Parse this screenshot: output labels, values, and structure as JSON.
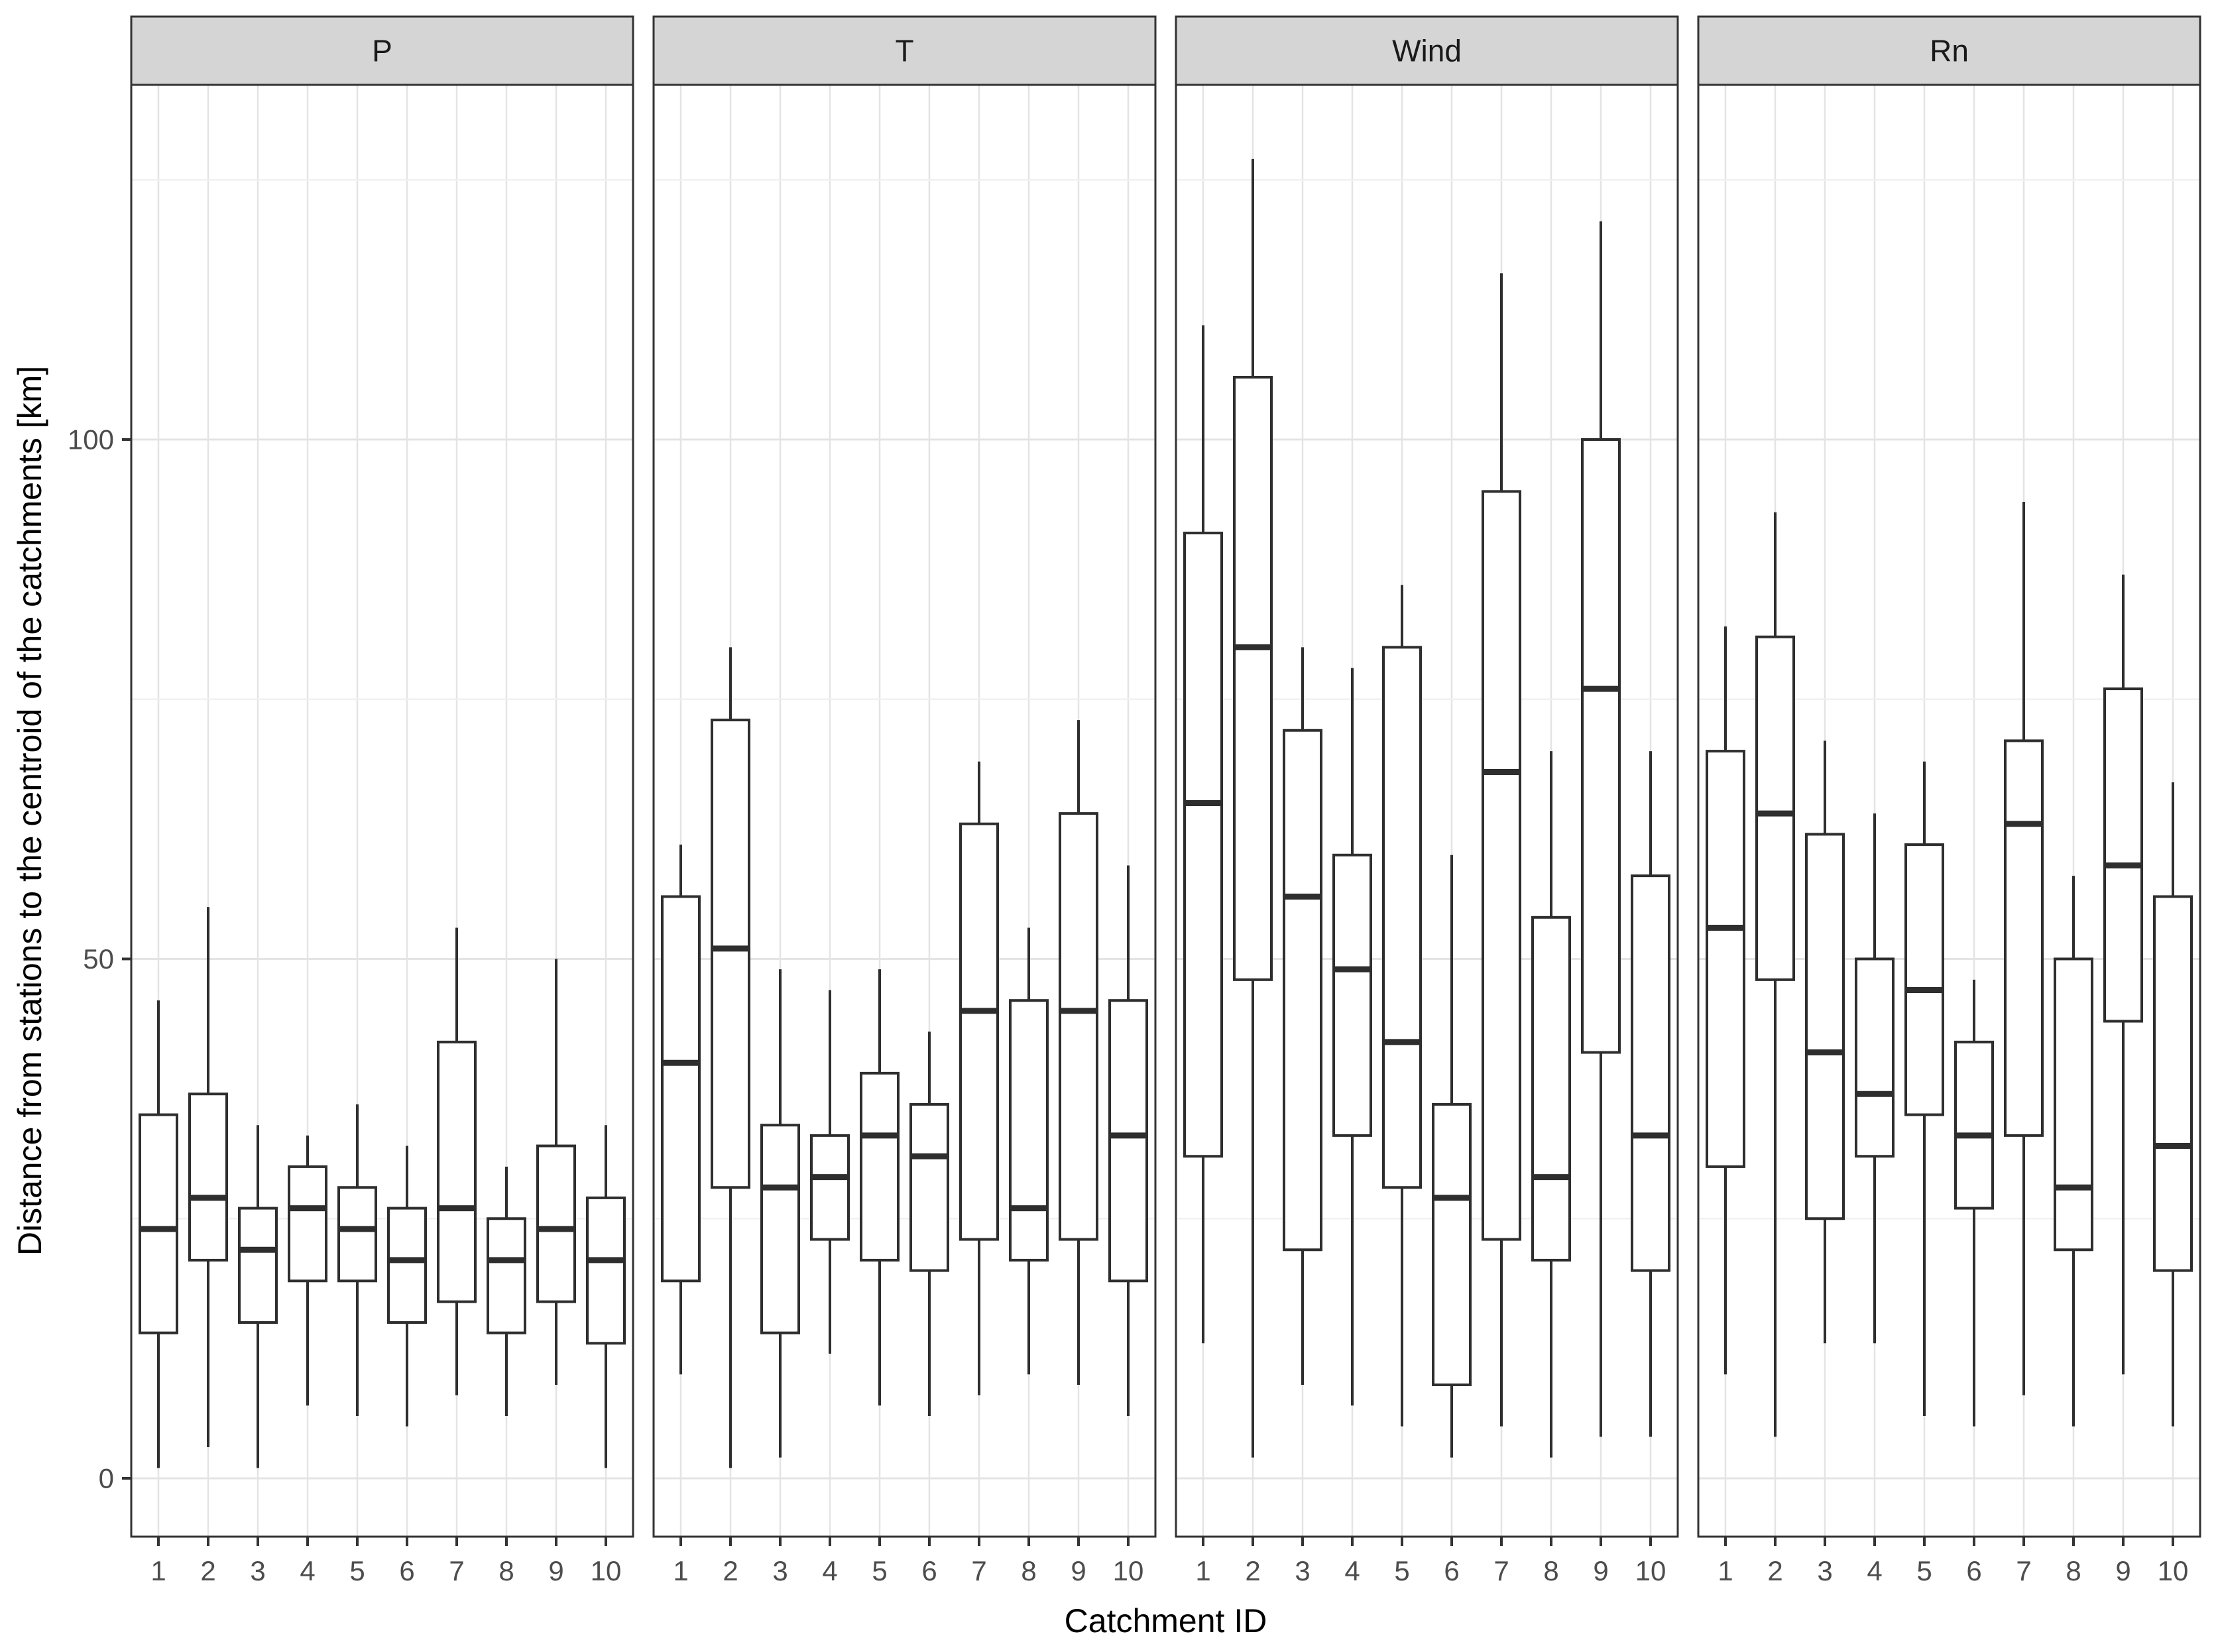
{
  "chart_data": {
    "type": "boxplot",
    "title": "",
    "xlabel": "Catchment ID",
    "ylabel": "Distance from stations to the centroid of the catchments [km]",
    "categories": [
      "1",
      "2",
      "3",
      "4",
      "5",
      "6",
      "7",
      "8",
      "9",
      "10"
    ],
    "yticks": [
      0,
      50,
      100
    ],
    "ytick_labels": [
      "0",
      "50",
      "100"
    ],
    "ylim": [
      -5.5,
      134
    ],
    "grid": {
      "major_y": [
        0,
        50,
        100
      ],
      "minor_y": [
        25,
        75,
        125
      ],
      "vertical_at_categories": true
    },
    "legend_position": "none",
    "facets": [
      {
        "label": "P",
        "boxes": [
          {
            "category": "1",
            "whisker_low": 1,
            "q1": 14,
            "median": 24,
            "q3": 35,
            "whisker_high": 46
          },
          {
            "category": "2",
            "whisker_low": 3,
            "q1": 21,
            "median": 27,
            "q3": 37,
            "whisker_high": 55
          },
          {
            "category": "3",
            "whisker_low": 1,
            "q1": 15,
            "median": 22,
            "q3": 26,
            "whisker_high": 34
          },
          {
            "category": "4",
            "whisker_low": 7,
            "q1": 19,
            "median": 26,
            "q3": 30,
            "whisker_high": 33
          },
          {
            "category": "5",
            "whisker_low": 6,
            "q1": 19,
            "median": 24,
            "q3": 28,
            "whisker_high": 36
          },
          {
            "category": "6",
            "whisker_low": 5,
            "q1": 15,
            "median": 21,
            "q3": 26,
            "whisker_high": 32
          },
          {
            "category": "7",
            "whisker_low": 8,
            "q1": 17,
            "median": 26,
            "q3": 42,
            "whisker_high": 53
          },
          {
            "category": "8",
            "whisker_low": 6,
            "q1": 14,
            "median": 21,
            "q3": 25,
            "whisker_high": 30
          },
          {
            "category": "9",
            "whisker_low": 9,
            "q1": 17,
            "median": 24,
            "q3": 32,
            "whisker_high": 50
          },
          {
            "category": "10",
            "whisker_low": 1,
            "q1": 13,
            "median": 21,
            "q3": 27,
            "whisker_high": 34
          }
        ]
      },
      {
        "label": "T",
        "boxes": [
          {
            "category": "1",
            "whisker_low": 10,
            "q1": 19,
            "median": 40,
            "q3": 56,
            "whisker_high": 61
          },
          {
            "category": "2",
            "whisker_low": 1,
            "q1": 28,
            "median": 51,
            "q3": 73,
            "whisker_high": 80
          },
          {
            "category": "3",
            "whisker_low": 2,
            "q1": 14,
            "median": 28,
            "q3": 34,
            "whisker_high": 49
          },
          {
            "category": "4",
            "whisker_low": 12,
            "q1": 23,
            "median": 29,
            "q3": 33,
            "whisker_high": 47
          },
          {
            "category": "5",
            "whisker_low": 7,
            "q1": 21,
            "median": 33,
            "q3": 39,
            "whisker_high": 49
          },
          {
            "category": "6",
            "whisker_low": 6,
            "q1": 20,
            "median": 31,
            "q3": 36,
            "whisker_high": 43
          },
          {
            "category": "7",
            "whisker_low": 8,
            "q1": 23,
            "median": 45,
            "q3": 63,
            "whisker_high": 69
          },
          {
            "category": "8",
            "whisker_low": 10,
            "q1": 21,
            "median": 26,
            "q3": 46,
            "whisker_high": 53
          },
          {
            "category": "9",
            "whisker_low": 9,
            "q1": 23,
            "median": 45,
            "q3": 64,
            "whisker_high": 73
          },
          {
            "category": "10",
            "whisker_low": 6,
            "q1": 19,
            "median": 33,
            "q3": 46,
            "whisker_high": 59
          }
        ]
      },
      {
        "label": "Wind",
        "boxes": [
          {
            "category": "1",
            "whisker_low": 13,
            "q1": 31,
            "median": 65,
            "q3": 91,
            "whisker_high": 111
          },
          {
            "category": "2",
            "whisker_low": 2,
            "q1": 48,
            "median": 80,
            "q3": 106,
            "whisker_high": 127
          },
          {
            "category": "3",
            "whisker_low": 9,
            "q1": 22,
            "median": 56,
            "q3": 72,
            "whisker_high": 80
          },
          {
            "category": "4",
            "whisker_low": 7,
            "q1": 33,
            "median": 49,
            "q3": 60,
            "whisker_high": 78
          },
          {
            "category": "5",
            "whisker_low": 5,
            "q1": 28,
            "median": 42,
            "q3": 80,
            "whisker_high": 86
          },
          {
            "category": "6",
            "whisker_low": 2,
            "q1": 9,
            "median": 27,
            "q3": 36,
            "whisker_high": 60
          },
          {
            "category": "7",
            "whisker_low": 5,
            "q1": 23,
            "median": 68,
            "q3": 95,
            "whisker_high": 116
          },
          {
            "category": "8",
            "whisker_low": 2,
            "q1": 21,
            "median": 29,
            "q3": 54,
            "whisker_high": 70
          },
          {
            "category": "9",
            "whisker_low": 4,
            "q1": 41,
            "median": 76,
            "q3": 100,
            "whisker_high": 121
          },
          {
            "category": "10",
            "whisker_low": 4,
            "q1": 20,
            "median": 33,
            "q3": 58,
            "whisker_high": 70
          }
        ]
      },
      {
        "label": "Rn",
        "boxes": [
          {
            "category": "1",
            "whisker_low": 10,
            "q1": 30,
            "median": 53,
            "q3": 70,
            "whisker_high": 82
          },
          {
            "category": "2",
            "whisker_low": 4,
            "q1": 48,
            "median": 64,
            "q3": 81,
            "whisker_high": 93
          },
          {
            "category": "3",
            "whisker_low": 13,
            "q1": 25,
            "median": 41,
            "q3": 62,
            "whisker_high": 71
          },
          {
            "category": "4",
            "whisker_low": 13,
            "q1": 31,
            "median": 37,
            "q3": 50,
            "whisker_high": 64
          },
          {
            "category": "5",
            "whisker_low": 6,
            "q1": 35,
            "median": 47,
            "q3": 61,
            "whisker_high": 69
          },
          {
            "category": "6",
            "whisker_low": 5,
            "q1": 26,
            "median": 33,
            "q3": 42,
            "whisker_high": 48
          },
          {
            "category": "7",
            "whisker_low": 8,
            "q1": 33,
            "median": 63,
            "q3": 71,
            "whisker_high": 94
          },
          {
            "category": "8",
            "whisker_low": 5,
            "q1": 22,
            "median": 28,
            "q3": 50,
            "whisker_high": 58
          },
          {
            "category": "9",
            "whisker_low": 10,
            "q1": 44,
            "median": 59,
            "q3": 76,
            "whisker_high": 87
          },
          {
            "category": "10",
            "whisker_low": 5,
            "q1": 20,
            "median": 32,
            "q3": 56,
            "whisker_high": 67
          }
        ]
      }
    ],
    "colors": {
      "panel_background": "#ffffff",
      "panel_border": "#333333",
      "strip_background": "#d5d5d5",
      "strip_border": "#333333",
      "strip_text": "#1a1a1a",
      "grid_major": "#e4e4e4",
      "grid_minor": "#f1f1f1",
      "box_stroke": "#2e2e2e",
      "axis_tick_text": "#4d4d4d",
      "axis_title_text": "#000000",
      "tick_mark": "#333333"
    }
  }
}
